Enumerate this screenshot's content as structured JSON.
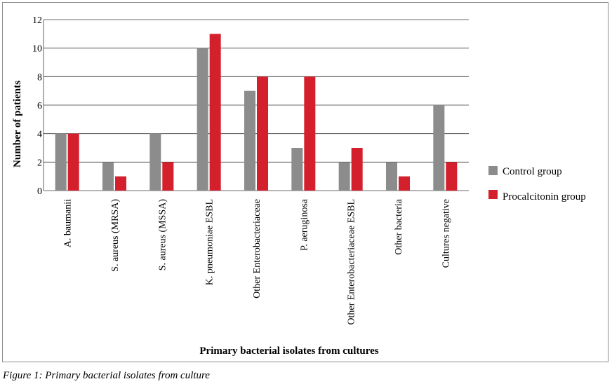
{
  "caption": "Figure 1: Primary bacterial isolates from culture",
  "chart_data": {
    "type": "bar",
    "title": "",
    "xlabel": "Primary bacterial isolates from cultures",
    "ylabel": "Number of patients",
    "ylim": [
      0,
      12
    ],
    "yticks": [
      "0",
      "2",
      "4",
      "6",
      "8",
      "10",
      "12"
    ],
    "grid": true,
    "legend_position": "right",
    "categories": [
      "A. baumanii",
      "S. aureus (MRSA)",
      "S. aureus (MSSA)",
      "K. pneumoniae ESBL",
      "Other Enterobacteriaceae",
      "P. aeruginosa",
      "Other Enterobacteriaceae ESBL",
      "Other bacteria",
      "Cultures negative"
    ],
    "series": [
      {
        "name": "Control group",
        "color": "#8c8c8c",
        "values": [
          4,
          2,
          4,
          10,
          7,
          3,
          2,
          2,
          6
        ]
      },
      {
        "name": "Procalcitonin group",
        "color": "#d4202c",
        "values": [
          4,
          1,
          2,
          11,
          8,
          8,
          3,
          1,
          2
        ]
      }
    ]
  }
}
